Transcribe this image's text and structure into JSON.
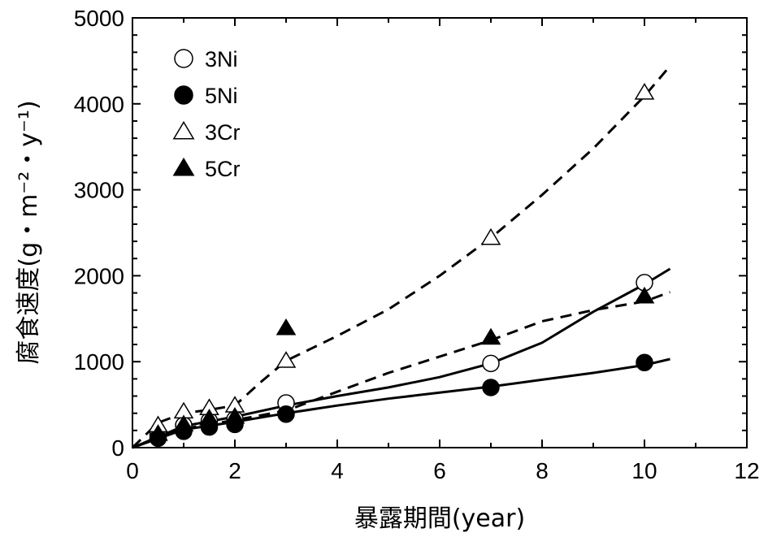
{
  "chart_data": {
    "type": "scatter",
    "xlabel": "暴露期間(year)",
    "ylabel": "腐食速度(g・m⁻²・y⁻¹)",
    "xlim": [
      0,
      12
    ],
    "ylim": [
      0,
      5000
    ],
    "x_ticks": [
      "0",
      "2",
      "4",
      "6",
      "8",
      "10",
      "12"
    ],
    "y_ticks": [
      "0",
      "1000",
      "2000",
      "3000",
      "4000",
      "5000"
    ],
    "grid": false,
    "legend_position": "top-left",
    "series": [
      {
        "name": "3Ni",
        "marker": "open-circle",
        "points": [
          [
            0.5,
            150
          ],
          [
            1,
            260
          ],
          [
            1.5,
            310
          ],
          [
            2,
            330
          ],
          [
            3,
            520
          ],
          [
            7,
            980
          ],
          [
            10,
            1920
          ]
        ]
      },
      {
        "name": "5Ni",
        "marker": "filled-circle",
        "points": [
          [
            0.5,
            110
          ],
          [
            1,
            190
          ],
          [
            1.5,
            240
          ],
          [
            2,
            270
          ],
          [
            3,
            390
          ],
          [
            7,
            700
          ],
          [
            10,
            990
          ]
        ]
      },
      {
        "name": "3Cr",
        "marker": "open-triangle",
        "points": [
          [
            0.5,
            260
          ],
          [
            1,
            420
          ],
          [
            1.5,
            460
          ],
          [
            2,
            490
          ],
          [
            3,
            1010
          ],
          [
            7,
            2440
          ],
          [
            10,
            4130
          ]
        ]
      },
      {
        "name": "5Cr",
        "marker": "filled-triangle",
        "points": [
          [
            0.5,
            160
          ],
          [
            1,
            270
          ],
          [
            1.5,
            340
          ],
          [
            2,
            360
          ],
          [
            3,
            1390
          ],
          [
            7,
            1280
          ],
          [
            10,
            1760
          ]
        ]
      }
    ],
    "fit_curves": [
      {
        "series": "3Ni",
        "style": "solid",
        "points": [
          [
            0,
            0
          ],
          [
            1,
            250
          ],
          [
            2,
            360
          ],
          [
            3,
            490
          ],
          [
            4,
            600
          ],
          [
            5,
            700
          ],
          [
            6,
            820
          ],
          [
            7,
            980
          ],
          [
            8,
            1220
          ],
          [
            9,
            1580
          ],
          [
            10,
            1900
          ],
          [
            10.5,
            2080
          ]
        ]
      },
      {
        "series": "5Ni",
        "style": "solid",
        "points": [
          [
            0,
            0
          ],
          [
            1,
            210
          ],
          [
            2,
            300
          ],
          [
            3,
            400
          ],
          [
            4,
            490
          ],
          [
            5,
            570
          ],
          [
            6,
            640
          ],
          [
            7,
            710
          ],
          [
            8,
            790
          ],
          [
            9,
            870
          ],
          [
            10,
            960
          ],
          [
            10.5,
            1030
          ]
        ]
      },
      {
        "series": "3Cr",
        "style": "dashed",
        "points": [
          [
            0,
            0
          ],
          [
            0.5,
            290
          ],
          [
            1,
            400
          ],
          [
            1.5,
            440
          ],
          [
            2,
            490
          ],
          [
            2.5,
            760
          ],
          [
            3,
            1010
          ],
          [
            4,
            1300
          ],
          [
            5,
            1610
          ],
          [
            6,
            2000
          ],
          [
            7,
            2440
          ],
          [
            8,
            2940
          ],
          [
            9,
            3480
          ],
          [
            10,
            4090
          ],
          [
            10.5,
            4440
          ]
        ]
      },
      {
        "series": "5Cr",
        "style": "dashed",
        "points": [
          [
            0,
            0
          ],
          [
            1,
            220
          ],
          [
            2,
            320
          ],
          [
            3,
            430
          ],
          [
            4,
            650
          ],
          [
            5,
            870
          ],
          [
            6,
            1060
          ],
          [
            7,
            1250
          ],
          [
            8,
            1470
          ],
          [
            9,
            1600
          ],
          [
            10,
            1700
          ],
          [
            10.5,
            1810
          ]
        ]
      }
    ]
  }
}
